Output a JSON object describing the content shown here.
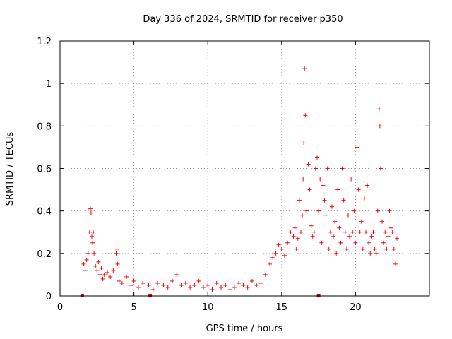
{
  "chart_data": {
    "type": "scatter",
    "title": "Day 336 of 2024, SRMTID for receiver p350",
    "xlabel": "GPS time / hours",
    "ylabel": "SRMTID / TECUs",
    "xlim": [
      0,
      25
    ],
    "ylim": [
      0,
      1.2
    ],
    "x_ticks": [
      0,
      5,
      10,
      15,
      20
    ],
    "x_tick_labels": [
      "0",
      "5",
      "10",
      "15",
      "20"
    ],
    "y_ticks": [
      0,
      0.2,
      0.4,
      0.6,
      0.8,
      1.0,
      1.2
    ],
    "y_tick_labels": [
      "0",
      "0.2",
      "0.4",
      "0.6",
      "0.8",
      "1",
      "1.2"
    ],
    "grid": true,
    "marker": "plus",
    "color": "#ff0000",
    "gap_markers_x": [
      1.5,
      6.1,
      17.5
    ],
    "series": [
      {
        "name": "p350",
        "x": [
          1.6,
          1.7,
          1.8,
          1.9,
          2.0,
          2.05,
          2.1,
          2.15,
          2.2,
          2.25,
          2.3,
          2.4,
          2.5,
          2.6,
          2.7,
          2.8,
          2.9,
          3.0,
          3.2,
          3.4,
          3.6,
          3.8,
          3.85,
          3.9,
          4.0,
          4.2,
          4.5,
          4.8,
          5.0,
          5.3,
          5.6,
          6.0,
          6.3,
          6.6,
          7.0,
          7.3,
          7.6,
          7.9,
          8.2,
          8.5,
          8.8,
          9.1,
          9.4,
          9.7,
          10.0,
          10.3,
          10.6,
          10.9,
          11.2,
          11.5,
          11.8,
          12.1,
          12.4,
          12.7,
          13.0,
          13.3,
          13.6,
          13.9,
          14.2,
          14.4,
          14.6,
          14.8,
          15.0,
          15.2,
          15.4,
          15.6,
          15.8,
          15.9,
          16.0,
          16.1,
          16.2,
          16.3,
          16.4,
          16.45,
          16.5,
          16.55,
          16.6,
          16.7,
          16.8,
          16.9,
          17.0,
          17.1,
          17.2,
          17.3,
          17.4,
          17.5,
          17.6,
          17.7,
          17.8,
          17.9,
          18.0,
          18.1,
          18.2,
          18.3,
          18.4,
          18.5,
          18.6,
          18.7,
          18.8,
          18.9,
          19.0,
          19.1,
          19.2,
          19.3,
          19.4,
          19.5,
          19.6,
          19.7,
          19.8,
          19.9,
          20.0,
          20.1,
          20.2,
          20.3,
          20.4,
          20.5,
          20.6,
          20.7,
          20.8,
          20.9,
          21.0,
          21.1,
          21.2,
          21.3,
          21.4,
          21.5,
          21.6,
          21.65,
          21.7,
          21.8,
          21.9,
          22.0,
          22.1,
          22.2,
          22.3,
          22.4,
          22.5,
          22.6,
          22.7,
          22.8
        ],
        "y": [
          0.15,
          0.12,
          0.17,
          0.2,
          0.3,
          0.41,
          0.39,
          0.28,
          0.25,
          0.3,
          0.2,
          0.14,
          0.12,
          0.16,
          0.1,
          0.13,
          0.08,
          0.1,
          0.11,
          0.09,
          0.12,
          0.2,
          0.22,
          0.15,
          0.07,
          0.06,
          0.09,
          0.05,
          0.07,
          0.04,
          0.06,
          0.05,
          0.03,
          0.06,
          0.05,
          0.04,
          0.07,
          0.1,
          0.05,
          0.06,
          0.04,
          0.05,
          0.07,
          0.04,
          0.05,
          0.03,
          0.06,
          0.04,
          0.05,
          0.03,
          0.04,
          0.06,
          0.05,
          0.04,
          0.07,
          0.05,
          0.06,
          0.1,
          0.15,
          0.18,
          0.2,
          0.24,
          0.22,
          0.19,
          0.25,
          0.3,
          0.28,
          0.32,
          0.22,
          0.27,
          0.45,
          0.3,
          0.38,
          0.55,
          0.72,
          1.07,
          0.85,
          0.4,
          0.62,
          0.5,
          0.33,
          0.28,
          0.3,
          0.6,
          0.65,
          0.4,
          0.55,
          0.25,
          0.52,
          0.45,
          0.38,
          0.6,
          0.22,
          0.3,
          0.42,
          0.28,
          0.35,
          0.2,
          0.5,
          0.32,
          0.25,
          0.6,
          0.45,
          0.3,
          0.22,
          0.38,
          0.28,
          0.55,
          0.3,
          0.4,
          0.25,
          0.7,
          0.5,
          0.3,
          0.35,
          0.22,
          0.46,
          0.3,
          0.52,
          0.25,
          0.2,
          0.28,
          0.3,
          0.22,
          0.2,
          0.4,
          0.88,
          0.8,
          0.6,
          0.35,
          0.25,
          0.3,
          0.22,
          0.28,
          0.4,
          0.32,
          0.3,
          0.22,
          0.15,
          0.27
        ]
      }
    ]
  }
}
